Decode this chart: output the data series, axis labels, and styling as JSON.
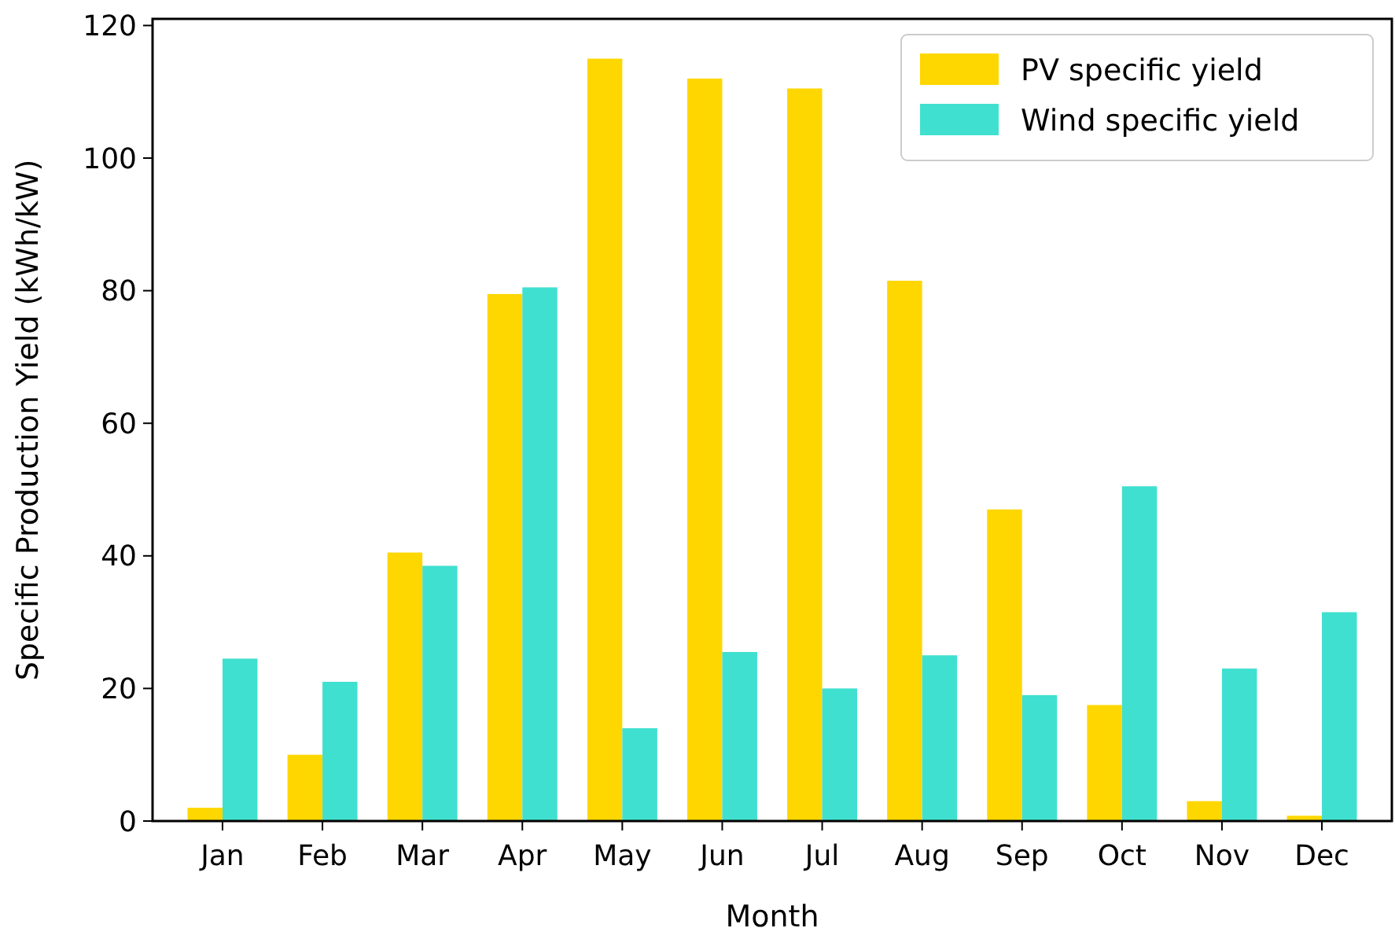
{
  "chart_data": {
    "type": "bar",
    "xlabel": "Month",
    "ylabel": "Specific Production Yield (kWh/kW)",
    "categories": [
      "Jan",
      "Feb",
      "Mar",
      "Apr",
      "May",
      "Jun",
      "Jul",
      "Aug",
      "Sep",
      "Oct",
      "Nov",
      "Dec"
    ],
    "series": [
      {
        "name": "PV specific yield",
        "color": "#ffd700",
        "values": [
          2,
          10,
          40.5,
          79.5,
          115,
          112,
          110.5,
          81.5,
          47,
          17.5,
          3,
          0.8
        ]
      },
      {
        "name": "Wind specific yield",
        "color": "#40e0d0",
        "values": [
          24.5,
          21,
          38.5,
          80.5,
          14,
          25.5,
          20,
          25,
          19,
          50.5,
          23,
          31.5
        ]
      }
    ],
    "ylim": [
      0,
      121
    ],
    "yticks": [
      0,
      20,
      40,
      60,
      80,
      100,
      120
    ],
    "legend": "top right"
  }
}
